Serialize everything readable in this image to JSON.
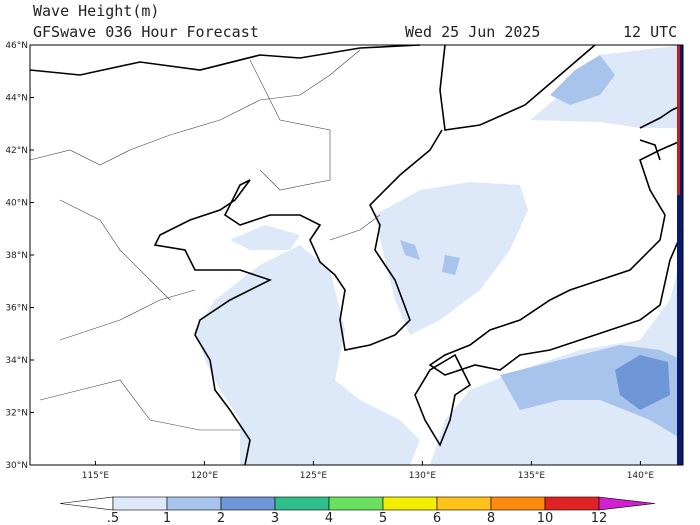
{
  "header": {
    "title": "Wave Height(m)",
    "subtitle": "GFSwave 036 Hour Forecast",
    "date": "Wed 25 Jun 2025",
    "time": "12 UTC"
  },
  "map": {
    "lat_labels": [
      "30°N",
      "32°N",
      "34°N",
      "36°N",
      "38°N",
      "40°N",
      "42°N",
      "44°N",
      "46°N"
    ],
    "lon_labels": [
      "115°E",
      "120°E",
      "125°E",
      "130°E",
      "135°E",
      "140°E"
    ]
  },
  "legend": {
    "labels": [
      ".5",
      "1",
      "2",
      "3",
      "4",
      "5",
      "6",
      "8",
      "10",
      "12"
    ],
    "colors": [
      "#ffffff",
      "#dde9f8",
      "#a9c4ec",
      "#6f96d6",
      "#2fbf8c",
      "#6be060",
      "#f2f000",
      "#ffc21a",
      "#ff8a10",
      "#e02424",
      "#d020d0"
    ]
  }
}
